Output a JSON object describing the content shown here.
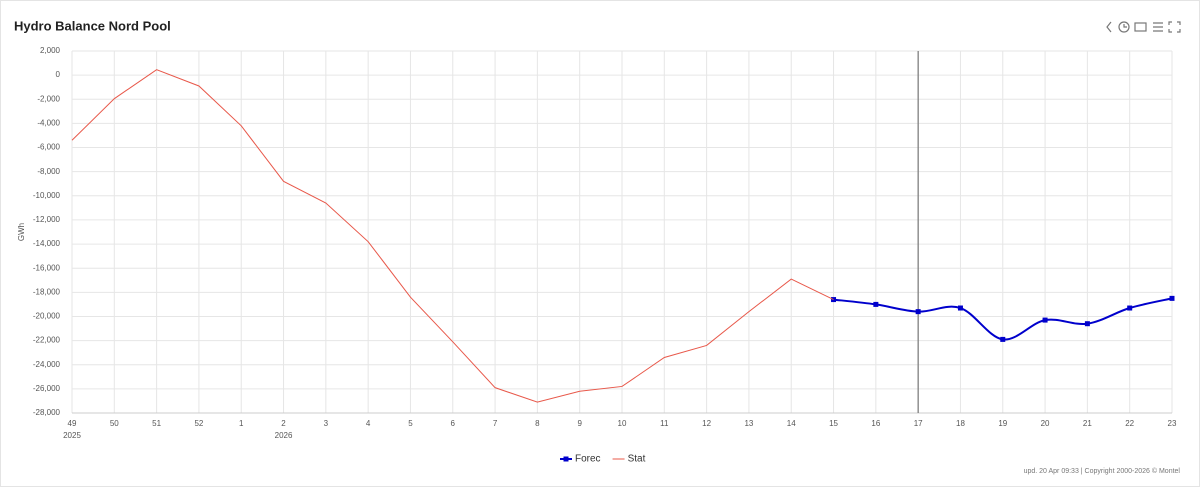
{
  "chart_data": {
    "type": "line",
    "title": "Hydro Balance Nord Pool",
    "y_label": "GWh",
    "categories": [
      "49",
      "50",
      "51",
      "52",
      "1",
      "2",
      "3",
      "4",
      "5",
      "6",
      "7",
      "8",
      "9",
      "10",
      "11",
      "12",
      "13",
      "14",
      "15",
      "16",
      "17",
      "18",
      "19",
      "20",
      "21",
      "22",
      "23"
    ],
    "year_labels": [
      "2025",
      null,
      null,
      null,
      null,
      "2026",
      null,
      null,
      null,
      null,
      null,
      null,
      null,
      null,
      null,
      null,
      null,
      null,
      null,
      null,
      null,
      null,
      null,
      null,
      null,
      null,
      null
    ],
    "series": [
      {
        "name": "Forec",
        "color": "#0000cc",
        "smooth": true,
        "markers": true,
        "values": [
          null,
          null,
          null,
          null,
          null,
          null,
          null,
          null,
          null,
          null,
          null,
          null,
          null,
          null,
          null,
          null,
          null,
          null,
          -18600,
          -19000,
          -19600,
          -19300,
          -21900,
          -20300,
          -20600,
          -19300,
          -18500
        ]
      },
      {
        "name": "Stat",
        "color": "#e8584a",
        "smooth": false,
        "markers": false,
        "values": [
          -5400,
          -1950,
          450,
          -900,
          -4200,
          -8800,
          -10600,
          -13800,
          -18400,
          -22100,
          -25900,
          -27100,
          -26200,
          -25800,
          -23400,
          -22400,
          -19600,
          -16900,
          -18600,
          null,
          null,
          null,
          null,
          null,
          null,
          null,
          null
        ]
      }
    ],
    "vertical_line_category": "17",
    "ylim": [
      -28000,
      2000
    ],
    "yticks": [
      {
        "value": -28000,
        "label": "-28,000"
      },
      {
        "value": -26000,
        "label": "-26,000"
      },
      {
        "value": -24000,
        "label": "-24,000"
      },
      {
        "value": -22000,
        "label": "-22,000"
      },
      {
        "value": -20000,
        "label": "-20,000"
      },
      {
        "value": -18000,
        "label": "-18,000"
      },
      {
        "value": -16000,
        "label": "-16,000"
      },
      {
        "value": -14000,
        "label": "-14,000"
      },
      {
        "value": -12000,
        "label": "-12,000"
      },
      {
        "value": -10000,
        "label": "-10,000"
      },
      {
        "value": -8000,
        "label": "-8,000"
      },
      {
        "value": -6000,
        "label": "-6,000"
      },
      {
        "value": -4000,
        "label": "-4,000"
      },
      {
        "value": -2000,
        "label": "-2,000"
      },
      0,
      {
        "value": 2000,
        "label": "2,000"
      }
    ],
    "grid": true,
    "footer": "upd. 20 Apr 09:33 | Copyright 2000-2026 © Montel"
  }
}
